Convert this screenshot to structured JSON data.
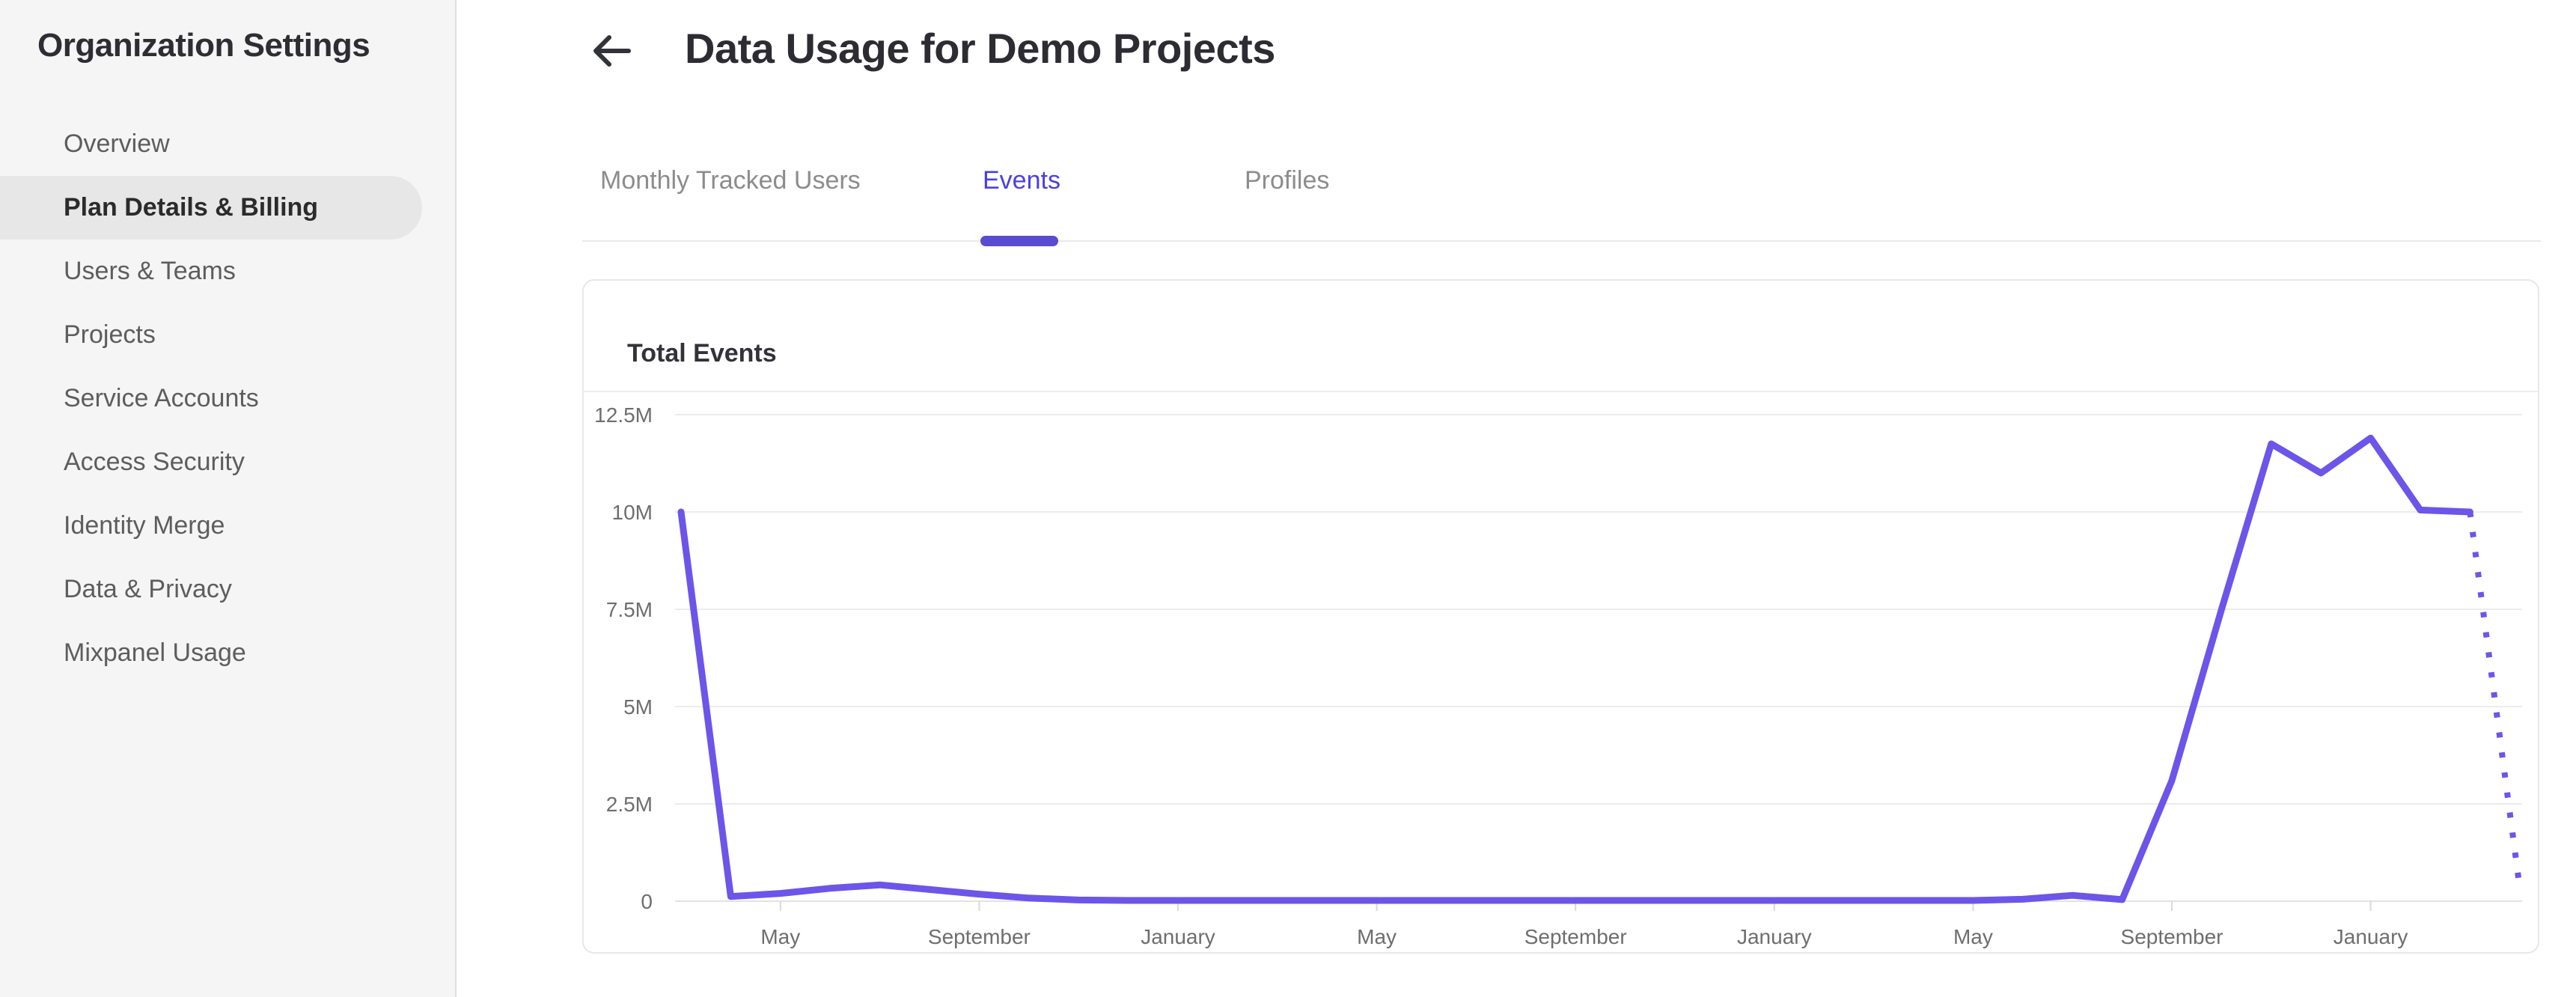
{
  "sidebar": {
    "title": "Organization Settings",
    "items": [
      {
        "label": "Overview",
        "selected": false
      },
      {
        "label": "Plan Details & Billing",
        "selected": true
      },
      {
        "label": "Users & Teams",
        "selected": false
      },
      {
        "label": "Projects",
        "selected": false
      },
      {
        "label": "Service Accounts",
        "selected": false
      },
      {
        "label": "Access Security",
        "selected": false
      },
      {
        "label": "Identity Merge",
        "selected": false
      },
      {
        "label": "Data & Privacy",
        "selected": false
      },
      {
        "label": "Mixpanel Usage",
        "selected": false
      }
    ]
  },
  "header": {
    "back_icon": "left-arrow",
    "title": "Data Usage for Demo Projects"
  },
  "tabs": [
    {
      "label": "Monthly Tracked Users",
      "active": false
    },
    {
      "label": "Events",
      "active": true
    },
    {
      "label": "Profiles",
      "active": false
    }
  ],
  "card": {
    "title": "Total Events"
  },
  "colors": {
    "accent_purple": "#6c55e9",
    "tab_active": "#4b40e0",
    "tab_indicator": "#594cd1",
    "grid_line": "#ececec",
    "axis_line": "#e2e2e2",
    "tick_mark": "#d9d9d9",
    "axis_text": "#6e6e6e",
    "sidebar_bg": "#f5f5f5",
    "selected_item_bg": "#e7e7e7"
  },
  "chart_data": {
    "type": "line",
    "title": "Total Events",
    "x_interval": "monthly",
    "series": [
      {
        "name": "Total Events",
        "values_millions": [
          10,
          0.12,
          0.2,
          0.33,
          0.42,
          0.3,
          0.18,
          0.08,
          0.03,
          0.02,
          0.02,
          0.02,
          0.02,
          0.02,
          0.02,
          0.02,
          0.02,
          0.02,
          0.02,
          0.02,
          0.02,
          0.02,
          0.02,
          0.02,
          0.02,
          0.02,
          0.02,
          0.05,
          0.15,
          0.04,
          3.1,
          7.5,
          11.75,
          11.0,
          11.9,
          10.05,
          10.0,
          0.35
        ],
        "last_segment_style": "dotted"
      }
    ],
    "x_ticks": [
      {
        "index": 2,
        "label": "May"
      },
      {
        "index": 6,
        "label": "September"
      },
      {
        "index": 10,
        "label": "January"
      },
      {
        "index": 14,
        "label": "May"
      },
      {
        "index": 18,
        "label": "September"
      },
      {
        "index": 22,
        "label": "January"
      },
      {
        "index": 26,
        "label": "May"
      },
      {
        "index": 30,
        "label": "September"
      },
      {
        "index": 34,
        "label": "January"
      }
    ],
    "y_ticks": [
      {
        "value": 12.5,
        "label": "12.5M"
      },
      {
        "value": 10,
        "label": "10M"
      },
      {
        "value": 7.5,
        "label": "7.5M"
      },
      {
        "value": 5,
        "label": "5M"
      },
      {
        "value": 2.5,
        "label": "2.5M"
      },
      {
        "value": 0,
        "label": "0"
      }
    ],
    "ylim_millions": [
      0,
      12.5
    ],
    "grid": "horizontal",
    "legend": "none"
  }
}
